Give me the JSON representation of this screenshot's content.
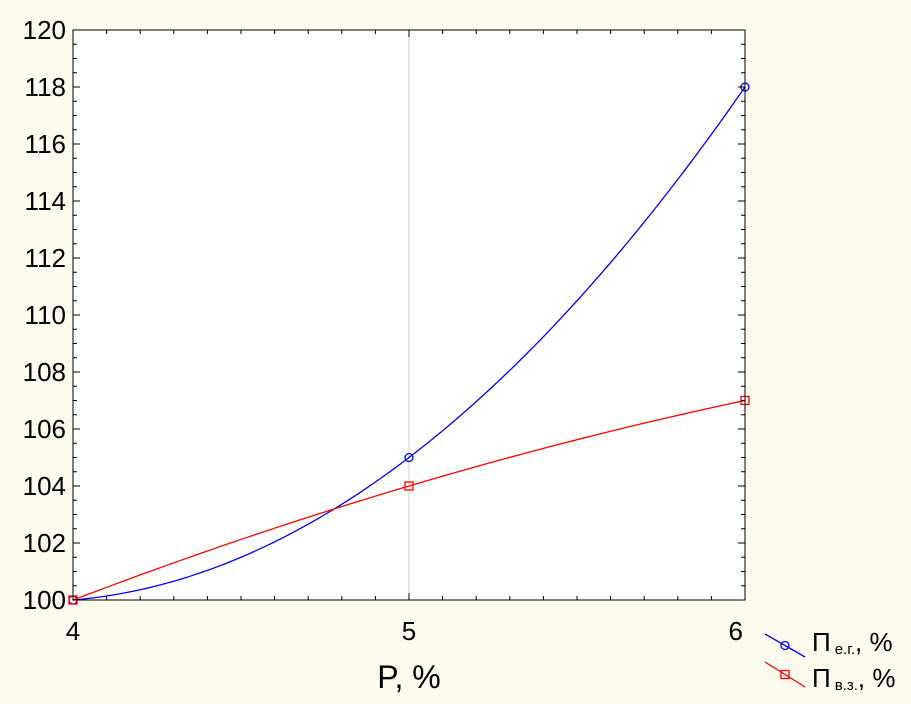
{
  "chart_data": {
    "type": "line",
    "title": "",
    "xlabel": "P, %",
    "ylabel": "",
    "x": [
      4,
      5,
      6
    ],
    "xlim": [
      4,
      6
    ],
    "ylim": [
      100,
      120
    ],
    "x_ticks": [
      "4",
      "5",
      "6"
    ],
    "y_ticks": [
      "100",
      "102",
      "104",
      "106",
      "108",
      "110",
      "112",
      "114",
      "116",
      "118",
      "120"
    ],
    "grid": "vertical only",
    "legend_placement": "bottom-right",
    "series": [
      {
        "name": "П",
        "subscript": "е.г.",
        "suffix": ", %",
        "values": [
          100,
          105,
          118
        ],
        "color": "#0000ff",
        "marker": "circle"
      },
      {
        "name": "П",
        "subscript": "в.з.",
        "suffix": ", %",
        "values": [
          100,
          104,
          107
        ],
        "color": "#ff0000",
        "marker": "square"
      }
    ]
  }
}
